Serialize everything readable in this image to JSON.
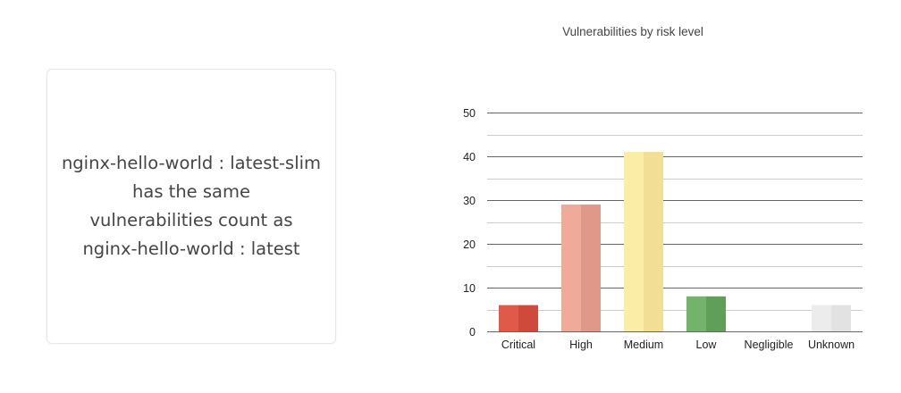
{
  "card": {
    "lines": [
      "nginx-hello-world : latest-slim",
      "has the same",
      "vulnerabilities count as",
      "nginx-hello-world : latest"
    ]
  },
  "chart_data": {
    "type": "bar",
    "title": "Vulnerabilities by risk level",
    "xlabel": "",
    "ylabel": "",
    "categories": [
      "Critical",
      "High",
      "Medium",
      "Low",
      "Negligible",
      "Unknown"
    ],
    "values": [
      6,
      29,
      41,
      8,
      0,
      6
    ],
    "ylim": [
      0,
      50
    ],
    "yticks": [
      0,
      10,
      20,
      30,
      40,
      50
    ],
    "grid": true,
    "colors": [
      [
        "#e05a4a",
        "#cf4a3b"
      ],
      [
        "#f0aa9a",
        "#e09888"
      ],
      [
        "#fbeda5",
        "#f2de95"
      ],
      [
        "#72b46a",
        "#5f9f58"
      ],
      [
        "#ececec",
        "#e0e0e0"
      ],
      [
        "#ececec",
        "#e2e2e2"
      ]
    ],
    "grid_color": "#666666",
    "minor_grid_color": "#cccccc"
  }
}
